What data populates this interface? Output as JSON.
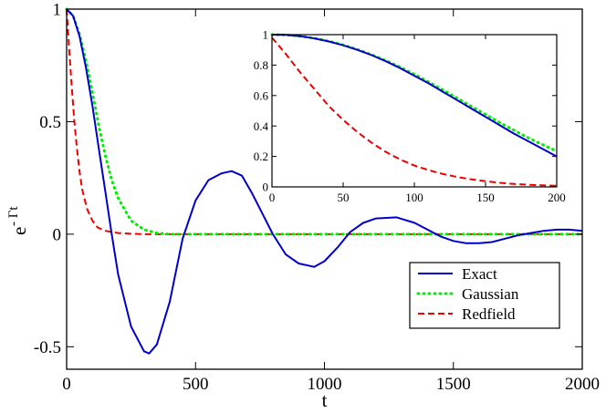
{
  "chart_data": [
    {
      "id": "main",
      "type": "line",
      "title": "",
      "xlabel": "t",
      "ylabel_base": "e",
      "ylabel_exponent": "- Γt",
      "xlim": [
        0,
        2000
      ],
      "ylim": [
        -0.6,
        1.0
      ],
      "x_ticks": [
        0,
        500,
        1000,
        1500,
        2000
      ],
      "x_tick_labels": [
        "0",
        "500",
        "1000",
        "1500",
        "2000"
      ],
      "y_ticks": [
        -0.5,
        0,
        0.5,
        1
      ],
      "y_tick_labels": [
        "-0.5",
        "0",
        "0.5",
        "1"
      ],
      "grid": false,
      "legend_position": "bottom-right",
      "series": [
        {
          "name": "Exact",
          "color": "#0000cc",
          "style": "solid",
          "x": [
            0,
            25,
            50,
            75,
            100,
            125,
            150,
            175,
            200,
            250,
            300,
            320,
            350,
            400,
            450,
            500,
            550,
            600,
            640,
            680,
            720,
            760,
            800,
            850,
            900,
            960,
            1000,
            1050,
            1100,
            1150,
            1200,
            1280,
            1350,
            1400,
            1450,
            1500,
            1550,
            1600,
            1650,
            1700,
            1750,
            1800,
            1850,
            1900,
            1950,
            2000
          ],
          "values": [
            1.0,
            0.97,
            0.88,
            0.74,
            0.57,
            0.38,
            0.19,
            0.0,
            -0.18,
            -0.41,
            -0.52,
            -0.53,
            -0.49,
            -0.3,
            -0.02,
            0.15,
            0.24,
            0.27,
            0.28,
            0.26,
            0.18,
            0.09,
            0.0,
            -0.09,
            -0.13,
            -0.145,
            -0.12,
            -0.06,
            0.01,
            0.05,
            0.07,
            0.075,
            0.05,
            0.02,
            -0.01,
            -0.03,
            -0.04,
            -0.04,
            -0.035,
            -0.02,
            -0.005,
            0.005,
            0.015,
            0.02,
            0.02,
            0.015
          ]
        },
        {
          "name": "Gaussian",
          "color": "#00ee00",
          "style": "dotted",
          "x": [
            0,
            25,
            50,
            75,
            100,
            125,
            150,
            175,
            200,
            250,
            300,
            350,
            400,
            500,
            750,
            1000,
            1250,
            1500,
            1750,
            2000
          ],
          "values": [
            1.0,
            0.97,
            0.89,
            0.77,
            0.63,
            0.48,
            0.35,
            0.24,
            0.16,
            0.06,
            0.02,
            0.005,
            0.0,
            0.0,
            0.0,
            0.0,
            0.0,
            0.0,
            0.0,
            0.0
          ]
        },
        {
          "name": "Redfield",
          "color": "#ee0000",
          "style": "dashed",
          "x": [
            0,
            10,
            20,
            30,
            40,
            50,
            60,
            80,
            100,
            120,
            150,
            200,
            250,
            300,
            400,
            500,
            750,
            1000,
            1500,
            2000
          ],
          "values": [
            1.0,
            0.82,
            0.65,
            0.5,
            0.38,
            0.28,
            0.2,
            0.11,
            0.06,
            0.03,
            0.015,
            0.005,
            0.002,
            0.0,
            0.0,
            0.0,
            0.0,
            0.0,
            0.0,
            0.0
          ]
        }
      ]
    },
    {
      "id": "inset",
      "type": "line",
      "title": "",
      "xlabel": "",
      "ylabel": "",
      "xlim": [
        0,
        200
      ],
      "ylim": [
        0,
        1
      ],
      "x_ticks": [
        0,
        50,
        100,
        150,
        200
      ],
      "x_tick_labels": [
        "0",
        "50",
        "100",
        "150",
        "200"
      ],
      "y_ticks": [
        0,
        0.2,
        0.4,
        0.6,
        0.8,
        1
      ],
      "y_tick_labels": [
        "0",
        "0.2",
        "0.4",
        "0.6",
        "0.8",
        "1"
      ],
      "grid": false,
      "series": [
        {
          "name": "Exact",
          "color": "#0000cc",
          "style": "solid",
          "x": [
            0,
            10,
            20,
            30,
            40,
            50,
            60,
            70,
            80,
            90,
            100,
            110,
            120,
            130,
            140,
            150,
            160,
            170,
            180,
            190,
            200
          ],
          "values": [
            1.0,
            0.998,
            0.99,
            0.975,
            0.955,
            0.93,
            0.9,
            0.865,
            0.825,
            0.78,
            0.73,
            0.68,
            0.625,
            0.57,
            0.515,
            0.46,
            0.405,
            0.35,
            0.3,
            0.25,
            0.2
          ]
        },
        {
          "name": "Gaussian",
          "color": "#00ee00",
          "style": "dotted",
          "x": [
            0,
            10,
            20,
            30,
            40,
            50,
            60,
            70,
            80,
            90,
            100,
            110,
            120,
            130,
            140,
            150,
            160,
            170,
            180,
            190,
            200
          ],
          "values": [
            1.0,
            0.998,
            0.99,
            0.976,
            0.957,
            0.933,
            0.903,
            0.869,
            0.83,
            0.787,
            0.74,
            0.69,
            0.638,
            0.584,
            0.53,
            0.476,
            0.423,
            0.372,
            0.323,
            0.278,
            0.235
          ]
        },
        {
          "name": "Redfield",
          "color": "#ee0000",
          "style": "dashed",
          "x": [
            0,
            10,
            20,
            30,
            40,
            50,
            60,
            70,
            80,
            90,
            100,
            110,
            120,
            130,
            140,
            150,
            160,
            170,
            180,
            190,
            200
          ],
          "values": [
            0.98,
            0.87,
            0.75,
            0.64,
            0.53,
            0.44,
            0.36,
            0.29,
            0.23,
            0.18,
            0.14,
            0.11,
            0.085,
            0.065,
            0.05,
            0.037,
            0.027,
            0.02,
            0.014,
            0.01,
            0.007
          ]
        }
      ]
    }
  ]
}
